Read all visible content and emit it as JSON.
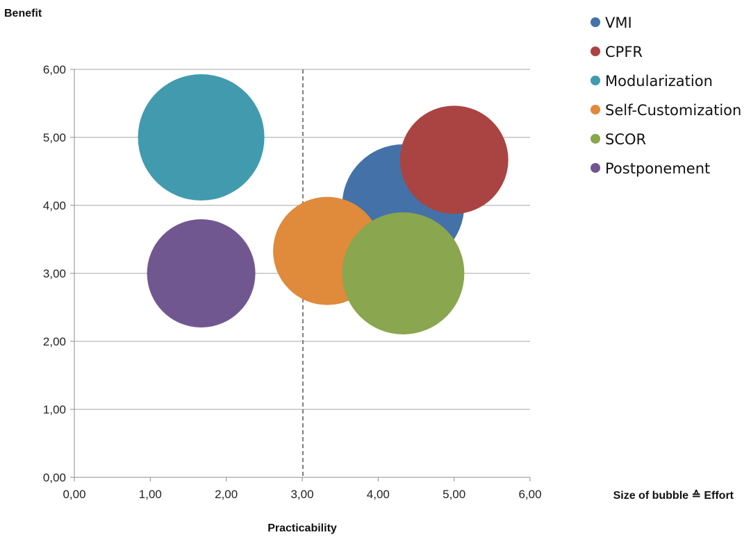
{
  "chart_data": {
    "type": "bubble",
    "ylabel": "Benefit",
    "xlabel": "Practicability",
    "size_label": "Size of bubble ≙ Effort",
    "xlim": [
      0,
      6
    ],
    "ylim": [
      0,
      6
    ],
    "x_ticks": [
      "0,00",
      "1,00",
      "2,00",
      "3,00",
      "4,00",
      "5,00",
      "6,00"
    ],
    "y_ticks": [
      "0,00",
      "1,00",
      "2,00",
      "3,00",
      "4,00",
      "5,00",
      "6,00"
    ],
    "grid": "horizontal",
    "reference_line": {
      "x": 3.0,
      "style": "dashed"
    },
    "legend_position": "top-right",
    "series": [
      {
        "name": "VMI",
        "x": 4.33,
        "y": 4.0,
        "size": 4.67,
        "color": "#4472a8"
      },
      {
        "name": "CPFR",
        "x": 5.0,
        "y": 4.67,
        "size": 3.67,
        "color": "#a94442"
      },
      {
        "name": "Modularization",
        "x": 1.67,
        "y": 5.0,
        "size": 5.0,
        "color": "#429aae"
      },
      {
        "name": "Self-Customization",
        "x": 3.33,
        "y": 3.33,
        "size": 3.67,
        "color": "#e08a3c"
      },
      {
        "name": "SCOR",
        "x": 4.33,
        "y": 3.0,
        "size": 4.67,
        "color": "#8aa64e"
      },
      {
        "name": "Postponement",
        "x": 1.67,
        "y": 3.0,
        "size": 3.67,
        "color": "#715790"
      }
    ]
  }
}
